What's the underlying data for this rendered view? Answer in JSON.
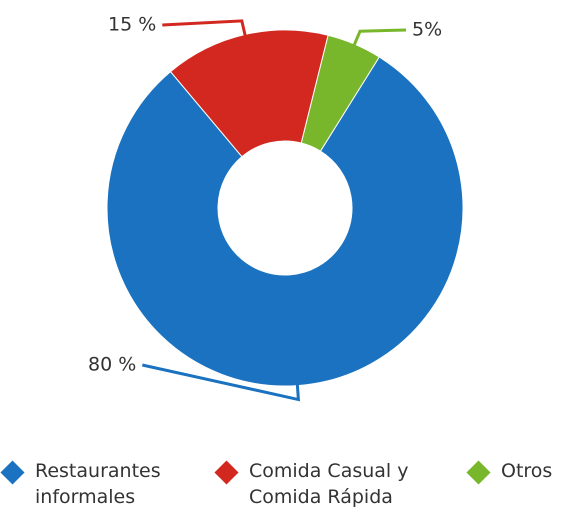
{
  "chart_data": {
    "type": "donut",
    "categories": [
      "Restaurantes informales",
      "Comida Casual y Comida Rápida",
      "Otros"
    ],
    "values": [
      80,
      15,
      5
    ],
    "value_labels": [
      "80 %",
      "15 %",
      "5%"
    ],
    "colors": [
      "#1a72c0",
      "#d2281f",
      "#78b72b"
    ]
  }
}
